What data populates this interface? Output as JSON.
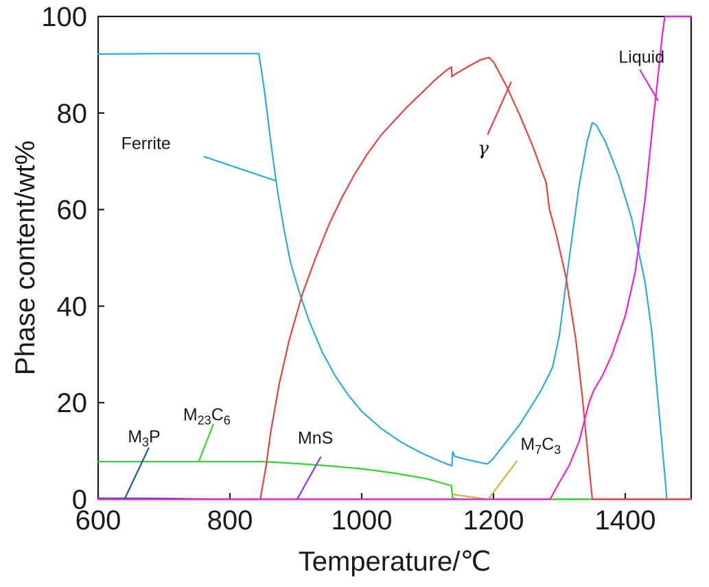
{
  "chart_data": {
    "type": "line",
    "xlabel": "Temperature/℃",
    "ylabel": "Phase content/wt%",
    "xlim": [
      600,
      1500
    ],
    "ylim": [
      0,
      100
    ],
    "xticks": [
      600,
      800,
      1000,
      1200,
      1400
    ],
    "xtick_labels": [
      "600",
      "800",
      "1000",
      "1200",
      "1400"
    ],
    "yticks": [
      0,
      20,
      40,
      60,
      80,
      100
    ],
    "ytick_labels": [
      "0",
      "20",
      "40",
      "60",
      "80",
      "100"
    ],
    "grid": false,
    "legend": "none",
    "series": [
      {
        "name": "Ferrite",
        "color": "#29abe2",
        "points": [
          [
            600,
            92.2
          ],
          [
            700,
            92.3
          ],
          [
            844,
            92.3
          ],
          [
            852,
            85
          ],
          [
            862,
            74
          ],
          [
            872,
            64
          ],
          [
            882,
            56
          ],
          [
            892,
            49
          ],
          [
            905,
            43
          ],
          [
            920,
            37
          ],
          [
            940,
            30.5
          ],
          [
            960,
            25.5
          ],
          [
            980,
            21.5
          ],
          [
            1000,
            18.2
          ],
          [
            1030,
            14.6
          ],
          [
            1060,
            11.8
          ],
          [
            1090,
            9.6
          ],
          [
            1120,
            7.8
          ],
          [
            1135,
            7.0
          ],
          [
            1137,
            6.9
          ],
          [
            1138,
            9.8
          ],
          [
            1141,
            8.9
          ],
          [
            1160,
            8.2
          ],
          [
            1180,
            7.6
          ],
          [
            1191,
            7.3
          ],
          [
            1200,
            8.5
          ],
          [
            1240,
            15.5
          ],
          [
            1270,
            22
          ],
          [
            1285,
            26
          ],
          [
            1290,
            27.5
          ],
          [
            1300,
            34
          ],
          [
            1315,
            50
          ],
          [
            1330,
            65
          ],
          [
            1342,
            74
          ],
          [
            1350,
            78
          ],
          [
            1356,
            77.5
          ],
          [
            1370,
            74
          ],
          [
            1390,
            67
          ],
          [
            1410,
            58
          ],
          [
            1430,
            45
          ],
          [
            1440,
            35
          ],
          [
            1450,
            20
          ],
          [
            1460,
            5
          ],
          [
            1463,
            0
          ]
        ]
      },
      {
        "name": "γ",
        "color": "#e8413e",
        "points": [
          [
            600,
            0
          ],
          [
            846,
            0
          ],
          [
            855,
            7
          ],
          [
            862,
            14
          ],
          [
            875,
            24
          ],
          [
            890,
            33
          ],
          [
            910,
            42.5
          ],
          [
            930,
            50
          ],
          [
            950,
            56.8
          ],
          [
            970,
            62.5
          ],
          [
            990,
            67.5
          ],
          [
            1010,
            71.8
          ],
          [
            1030,
            75.5
          ],
          [
            1050,
            78.5
          ],
          [
            1070,
            81.4
          ],
          [
            1090,
            84
          ],
          [
            1110,
            86.7
          ],
          [
            1130,
            89
          ],
          [
            1136,
            89.5
          ],
          [
            1137,
            87.5
          ],
          [
            1140,
            87.9
          ],
          [
            1160,
            89.5
          ],
          [
            1180,
            91
          ],
          [
            1193,
            91.5
          ],
          [
            1200,
            90.6
          ],
          [
            1220,
            85.5
          ],
          [
            1240,
            79.5
          ],
          [
            1260,
            73
          ],
          [
            1280,
            65.5
          ],
          [
            1285,
            60
          ],
          [
            1295,
            55
          ],
          [
            1310,
            46
          ],
          [
            1325,
            33
          ],
          [
            1335,
            21
          ],
          [
            1342,
            11
          ],
          [
            1347,
            4
          ],
          [
            1350,
            0
          ],
          [
            1500,
            0
          ]
        ]
      },
      {
        "name": "Liquid",
        "color": "#f01edc",
        "points": [
          [
            600,
            0
          ],
          [
            1286,
            0
          ],
          [
            1292,
            1.5
          ],
          [
            1300,
            3.5
          ],
          [
            1315,
            7
          ],
          [
            1330,
            12
          ],
          [
            1345,
            20
          ],
          [
            1352,
            22.5
          ],
          [
            1365,
            25.5
          ],
          [
            1380,
            30
          ],
          [
            1400,
            38
          ],
          [
            1415,
            47
          ],
          [
            1430,
            62
          ],
          [
            1442,
            78
          ],
          [
            1450,
            88
          ],
          [
            1456,
            96
          ],
          [
            1460,
            100
          ],
          [
            1500,
            100
          ]
        ]
      },
      {
        "name": "M23C6",
        "color": "#2ed82e",
        "points": [
          [
            600,
            7.8
          ],
          [
            700,
            7.8
          ],
          [
            850,
            7.8
          ],
          [
            900,
            7.4
          ],
          [
            950,
            6.9
          ],
          [
            1000,
            6.3
          ],
          [
            1050,
            5.4
          ],
          [
            1100,
            4.2
          ],
          [
            1136,
            2.8
          ],
          [
            1138,
            0.2
          ],
          [
            1150,
            0
          ],
          [
            1500,
            0
          ]
        ]
      },
      {
        "name": "MnS",
        "color": "#8f2ff5",
        "points": [
          [
            800,
            0
          ],
          [
            1135,
            0
          ]
        ]
      },
      {
        "name": "M3P",
        "color": "#1b5e8e",
        "points": [
          [
            600,
            0.2
          ],
          [
            700,
            0.15
          ],
          [
            750,
            0.05
          ],
          [
            800,
            0
          ]
        ]
      },
      {
        "name": "M7C3",
        "color": "#deae3a",
        "points": [
          [
            1137,
            1.0
          ],
          [
            1160,
            0.6
          ],
          [
            1180,
            0.2
          ],
          [
            1190,
            0
          ]
        ]
      }
    ],
    "annotations": [
      {
        "text": "Ferrite",
        "color": "#29abe2",
        "label_at": [
          635,
          72.5
        ],
        "leader": [
          [
            760,
            71
          ],
          [
            869,
            66
          ]
        ],
        "anchor": "start"
      },
      {
        "text": "γ",
        "color": "#e8413e",
        "label_at": [
          1176,
          71.4
        ],
        "leader": [
          [
            1191,
            75.5
          ],
          [
            1227,
            86.5
          ]
        ],
        "anchor": "start"
      },
      {
        "text": "Liquid",
        "color": "#f01edc",
        "label_at": [
          1390,
          90.4
        ],
        "leader": [
          [
            1422,
            89
          ],
          [
            1450,
            82.5
          ]
        ],
        "anchor": "start"
      },
      {
        "text": "M",
        "sub1": "23",
        "mid": "C",
        "sub2": "6",
        "color": "#2ed82e",
        "label_at": [
          729,
          16.3
        ],
        "leader": [
          [
            775,
            15.6
          ],
          [
            753,
            7.9
          ]
        ],
        "anchor": "start"
      },
      {
        "text": "M",
        "sub1": "3",
        "mid": "P",
        "sub2": "",
        "color": "#1b5e8e",
        "label_at": [
          645,
          11.8
        ],
        "leader": [
          [
            677,
            10.7
          ],
          [
            640,
            0
          ]
        ],
        "anchor": "start"
      },
      {
        "text": "MnS",
        "color": "#8f2ff5",
        "label_at": [
          903,
          11.5
        ],
        "leader": [
          [
            938,
            8.8
          ],
          [
            902,
            0
          ]
        ],
        "anchor": "start"
      },
      {
        "text": "M",
        "sub1": "7",
        "mid": "C",
        "sub2": "3",
        "color": "#deae3a",
        "label_at": [
          1241,
          10.2
        ],
        "leader": [
          [
            1236,
            8
          ],
          [
            1192,
            0
          ]
        ],
        "anchor": "start"
      }
    ]
  }
}
